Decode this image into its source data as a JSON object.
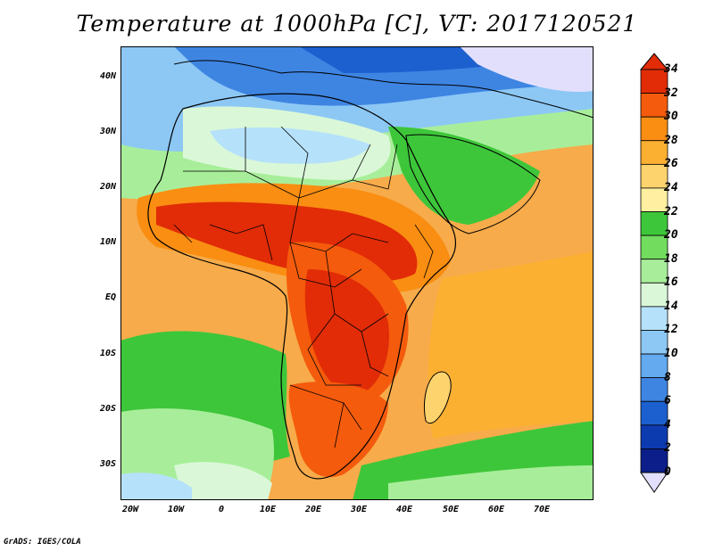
{
  "title": "Temperature at 1000hPa [C], VT: 2017120521",
  "footer": "GrADS: IGES/COLA",
  "lat_labels": [
    "40N",
    "30N",
    "20N",
    "10N",
    "EQ",
    "10S",
    "20S",
    "30S"
  ],
  "lon_labels": [
    "20W",
    "10W",
    "0",
    "10E",
    "20E",
    "30E",
    "40E",
    "50E",
    "60E",
    "70E"
  ],
  "map": {
    "variable": "Temperature at 1000hPa",
    "units": "C",
    "valid_time": "2017120521",
    "lat_range": [
      -36,
      45
    ],
    "lon_range": [
      -22,
      81
    ]
  },
  "legend": {
    "levels": [
      "34",
      "32",
      "30",
      "28",
      "26",
      "24",
      "22",
      "20",
      "18",
      "16",
      "14",
      "12",
      "10",
      "8",
      "6",
      "4",
      "2",
      "0"
    ],
    "colors": [
      "#e12c07",
      "#f45b0c",
      "#f98e12",
      "#fcb032",
      "#fdd36e",
      "#fef0a0",
      "#3ec63a",
      "#71dc5d",
      "#a8ee9a",
      "#daf8d8",
      "#b6e1fb",
      "#8dc8f5",
      "#63aaef",
      "#3e85e2",
      "#1c5fcf",
      "#0c3bb0",
      "#0b1e8a",
      "#e2dffd"
    ]
  },
  "colors": {
    "ocean_warm": "#f5a847",
    "hot": "#d8340b",
    "cool_green": "#71dc5d",
    "cold_blue": "#3e85e2"
  }
}
